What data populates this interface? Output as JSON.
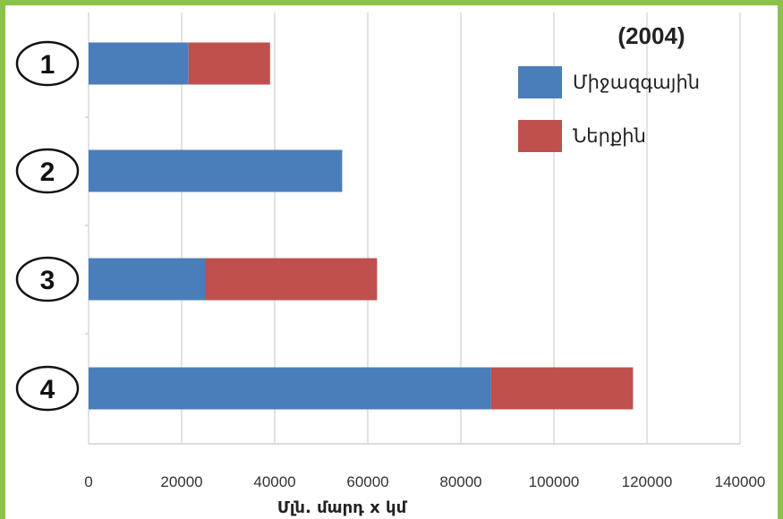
{
  "chart_data": {
    "type": "bar",
    "orientation": "horizontal",
    "stacked": true,
    "title": "(2004)",
    "xlabel": "Մլն. մարդ x կմ",
    "ylabel": "",
    "categories": [
      "1",
      "2",
      "3",
      "4"
    ],
    "series": [
      {
        "name": "Միջազգային",
        "color": "#4a7ebb",
        "values": [
          21500,
          54500,
          25000,
          86500
        ]
      },
      {
        "name": "Ներքին",
        "color": "#c0504d",
        "values": [
          17500,
          0,
          37000,
          30500
        ]
      }
    ],
    "xlim": [
      0,
      140000
    ],
    "xticks": [
      "0",
      "20000",
      "40000",
      "60000",
      "80000",
      "100000",
      "120000",
      "140000"
    ],
    "grid": true,
    "legend_position": "top-right"
  }
}
